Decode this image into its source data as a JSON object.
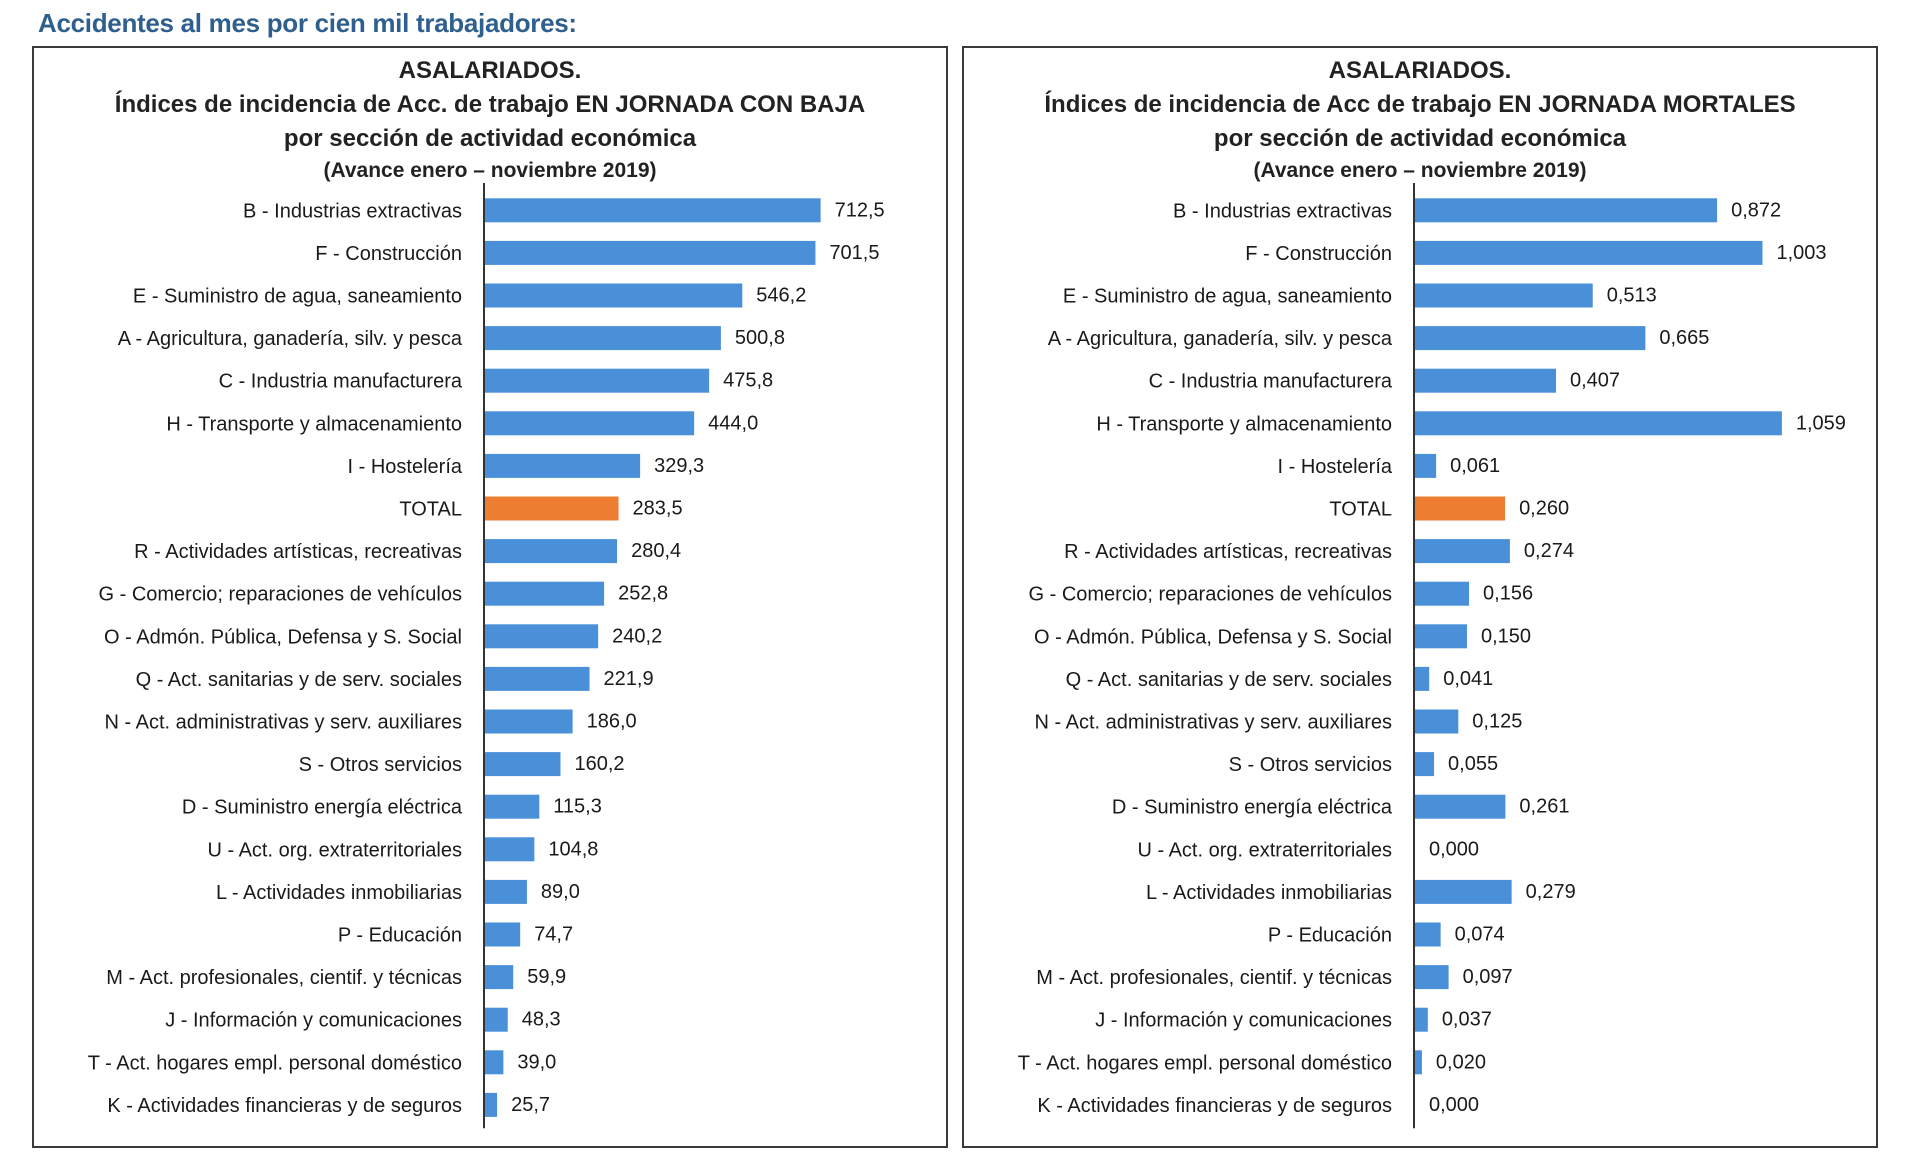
{
  "page": {
    "heading": "Accidentes al mes por cien mil trabajadores:"
  },
  "chart_data": [
    {
      "type": "bar",
      "orientation": "horizontal",
      "title": "ASALARIADOS.",
      "title_line2": "Índices de incidencia de Acc. de trabajo EN JORNADA CON BAJA",
      "title_line3": "por sección de actividad económica",
      "subtitle": "(Avance enero – noviembre 2019)",
      "categories": [
        "B - Industrias extractivas",
        "F - Construcción",
        "E - Suministro de agua, saneamiento",
        "A - Agricultura, ganadería, silv. y pesca",
        "C - Industria manufacturera",
        "H - Transporte y almacenamiento",
        "I - Hostelería",
        "TOTAL",
        "R - Actividades artísticas, recreativas",
        "G - Comercio; reparaciones de vehículos",
        "O - Admón. Pública, Defensa y S. Social",
        "Q - Act. sanitarias y de serv. sociales",
        "N - Act. administrativas y serv. auxiliares",
        "S - Otros servicios",
        "D - Suministro energía eléctrica",
        "U - Act. org. extraterritoriales",
        "L - Actividades inmobiliarias",
        "P - Educación",
        "M - Act. profesionales, cientif. y técnicas",
        "J - Información y comunicaciones",
        "T - Act. hogares empl. personal doméstico",
        "K - Actividades financieras y de seguros"
      ],
      "values": [
        712.5,
        701.5,
        546.2,
        500.8,
        475.8,
        444.0,
        329.3,
        283.5,
        280.4,
        252.8,
        240.2,
        221.9,
        186.0,
        160.2,
        115.3,
        104.8,
        89.0,
        74.7,
        59.9,
        48.3,
        39.0,
        25.7
      ],
      "value_labels": [
        "712,5",
        "701,5",
        "546,2",
        "500,8",
        "475,8",
        "444,0",
        "329,3",
        "283,5",
        "280,4",
        "252,8",
        "240,2",
        "221,9",
        "186,0",
        "160,2",
        "115,3",
        "104,8",
        "89,0",
        "74,7",
        "59,9",
        "48,3",
        "39,0",
        "25,7"
      ],
      "highlight_category": "TOTAL",
      "xlim": [
        0,
        760
      ],
      "bar_color": "#4a90d9",
      "highlight_color": "#ed7d31",
      "grid": false,
      "legend": "none"
    },
    {
      "type": "bar",
      "orientation": "horizontal",
      "title": "ASALARIADOS.",
      "title_line2": "Índices de incidencia de Acc de trabajo EN JORNADA MORTALES",
      "title_line3": "por sección de actividad económica",
      "subtitle": "(Avance enero – noviembre 2019)",
      "categories": [
        "B - Industrias extractivas",
        "F - Construcción",
        "E - Suministro de agua, saneamiento",
        "A - Agricultura, ganadería, silv. y pesca",
        "C - Industria manufacturera",
        "H - Transporte y almacenamiento",
        "I - Hostelería",
        "TOTAL",
        "R - Actividades artísticas, recreativas",
        "G - Comercio; reparaciones de vehículos",
        "O - Admón. Pública, Defensa y S. Social",
        "Q - Act. sanitarias y de serv. sociales",
        "N - Act. administrativas y serv. auxiliares",
        "S - Otros servicios",
        "D - Suministro energía eléctrica",
        "U - Act. org. extraterritoriales",
        "L - Actividades inmobiliarias",
        "P - Educación",
        "M - Act. profesionales, cientif. y técnicas",
        "J - Información y comunicaciones",
        "T - Act. hogares empl. personal doméstico",
        "K - Actividades financieras y de seguros"
      ],
      "values": [
        0.872,
        1.003,
        0.513,
        0.665,
        0.407,
        1.059,
        0.061,
        0.26,
        0.274,
        0.156,
        0.15,
        0.041,
        0.125,
        0.055,
        0.261,
        0.0,
        0.279,
        0.074,
        0.097,
        0.037,
        0.02,
        0.0
      ],
      "value_labels": [
        "0,872",
        "1,003",
        "0,513",
        "0,665",
        "0,407",
        "1,059",
        "0,061",
        "0,260",
        "0,274",
        "0,156",
        "0,150",
        "0,041",
        "0,125",
        "0,055",
        "0,261",
        "0,000",
        "0,279",
        "0,074",
        "0,097",
        "0,037",
        "0,020",
        "0,000"
      ],
      "highlight_category": "TOTAL",
      "xlim": [
        0,
        1.12
      ],
      "bar_color": "#4a90d9",
      "highlight_color": "#ed7d31",
      "grid": false,
      "legend": "none"
    }
  ]
}
